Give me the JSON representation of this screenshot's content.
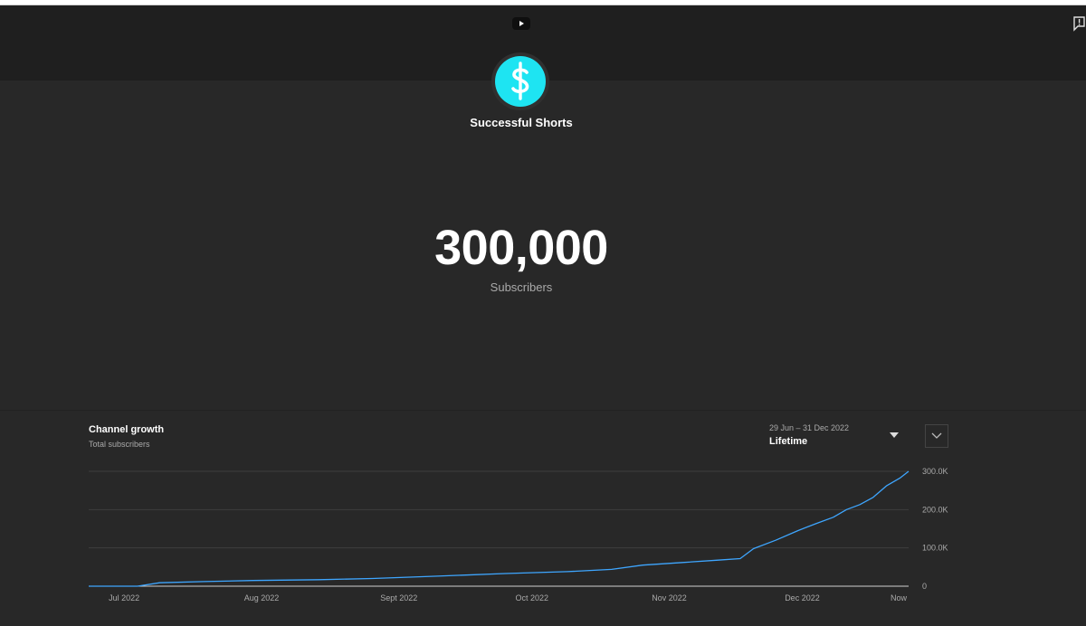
{
  "channel": {
    "name": "Successful Shorts",
    "subscriber_count": "300,000",
    "subscriber_label": "Subscribers"
  },
  "colors": {
    "background": "#282828",
    "banner": "#1f1f1f",
    "avatar_accent": "#1ee4f2",
    "line": "#3ea6ff"
  },
  "icons": {
    "header_logo": "youtube-icon",
    "header_right": "report-flag-icon",
    "avatar": "dollar-sign-icon",
    "range": "caret-down-icon",
    "expand": "chevron-down-icon"
  },
  "growth": {
    "title": "Channel growth",
    "subtitle": "Total subscribers",
    "range_dates": "29 Jun – 31 Dec 2022",
    "range_label": "Lifetime"
  },
  "chart_data": {
    "type": "line",
    "title": "Channel growth",
    "subtitle": "Total subscribers",
    "xlabel": "",
    "ylabel": "",
    "x_ticks": [
      "Jul 2022",
      "Aug 2022",
      "Sept 2022",
      "Oct 2022",
      "Nov 2022",
      "Dec 2022",
      "Now"
    ],
    "y_ticks": [
      "0",
      "100.0K",
      "200.0K",
      "300.0K"
    ],
    "ylim": [
      0,
      300000
    ],
    "grid": true,
    "series": [
      {
        "values": [
          {
            "x": "2022-06-29",
            "y": 0
          },
          {
            "x": "2022-07-10",
            "y": 0
          },
          {
            "x": "2022-07-15",
            "y": 9000
          },
          {
            "x": "2022-07-25",
            "y": 12000
          },
          {
            "x": "2022-08-05",
            "y": 15000
          },
          {
            "x": "2022-08-20",
            "y": 17000
          },
          {
            "x": "2022-09-01",
            "y": 20000
          },
          {
            "x": "2022-09-15",
            "y": 26000
          },
          {
            "x": "2022-10-01",
            "y": 33000
          },
          {
            "x": "2022-10-15",
            "y": 38000
          },
          {
            "x": "2022-10-25",
            "y": 44000
          },
          {
            "x": "2022-11-01",
            "y": 55000
          },
          {
            "x": "2022-11-10",
            "y": 62000
          },
          {
            "x": "2022-11-18",
            "y": 68000
          },
          {
            "x": "2022-11-23",
            "y": 72000
          },
          {
            "x": "2022-11-26",
            "y": 98000
          },
          {
            "x": "2022-12-01",
            "y": 120000
          },
          {
            "x": "2022-12-06",
            "y": 145000
          },
          {
            "x": "2022-12-10",
            "y": 163000
          },
          {
            "x": "2022-12-14",
            "y": 180000
          },
          {
            "x": "2022-12-17",
            "y": 200000
          },
          {
            "x": "2022-12-20",
            "y": 213000
          },
          {
            "x": "2022-12-23",
            "y": 232000
          },
          {
            "x": "2022-12-26",
            "y": 262000
          },
          {
            "x": "2022-12-29",
            "y": 282000
          },
          {
            "x": "2022-12-31",
            "y": 300000
          }
        ]
      }
    ]
  }
}
